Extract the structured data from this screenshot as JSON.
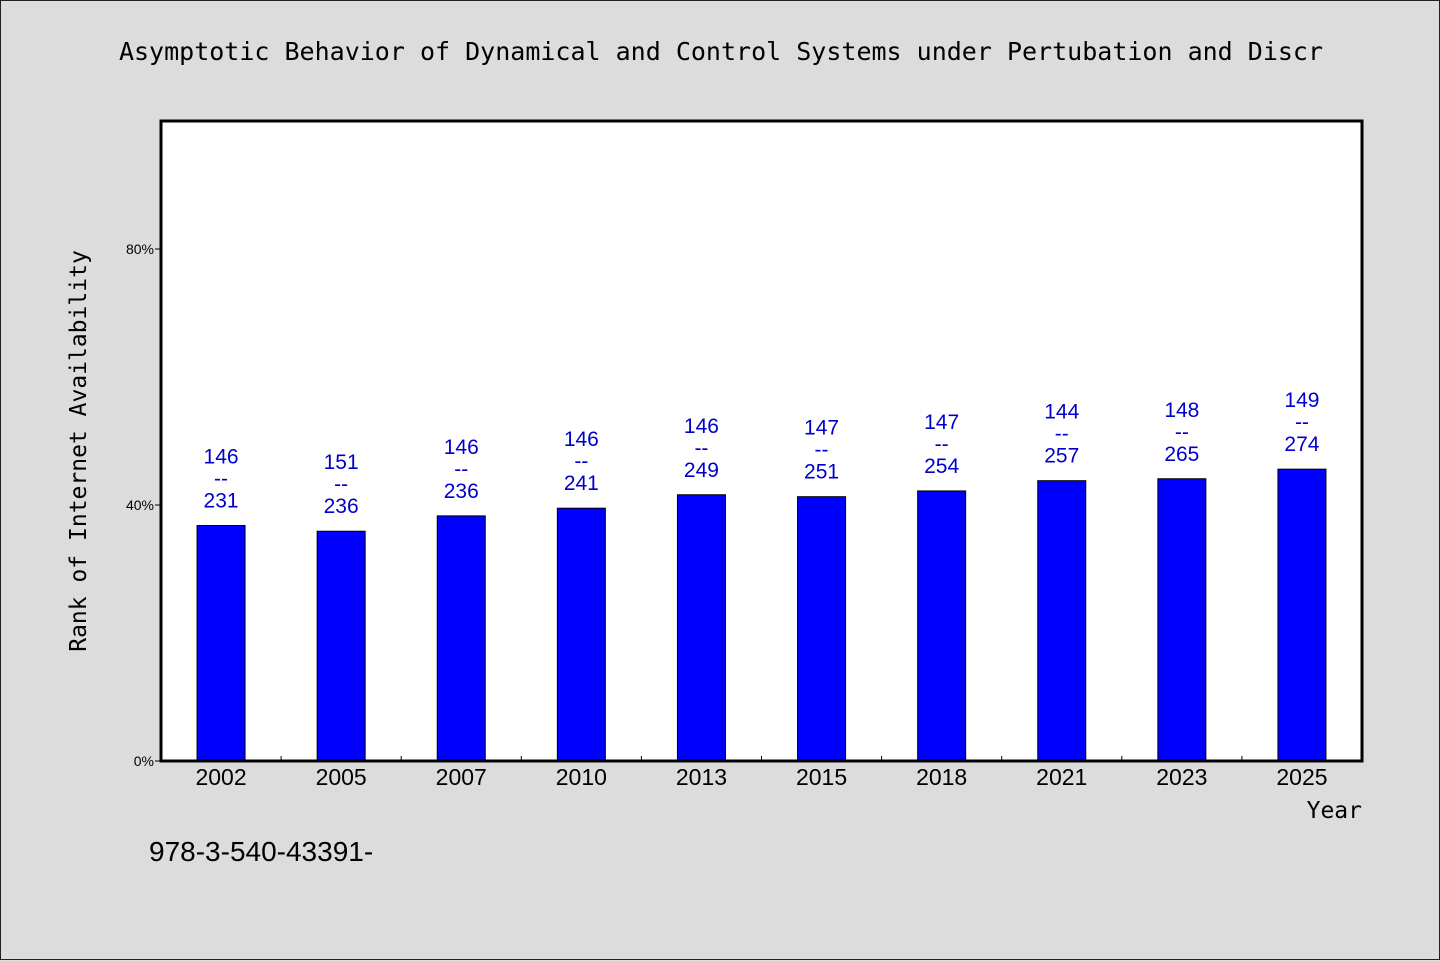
{
  "title": "Asymptotic Behavior of Dynamical and Control Systems under Pertubation and Discr",
  "footnote": "978-3-540-43391-",
  "colors": {
    "bar": "#0000ff",
    "label": "#0000cc",
    "background": "#dcdcdc",
    "plot": "#ffffff"
  },
  "chart_data": {
    "type": "bar",
    "title": "Asymptotic Behavior of Dynamical and Control Systems under Pertubation and Discr",
    "xlabel": "Year",
    "ylabel": "Rank of Internet Availability",
    "ylim": [
      0,
      100
    ],
    "yticks": [
      0,
      40,
      80
    ],
    "ytick_labels": [
      "0%",
      "40%",
      "80%"
    ],
    "grid": false,
    "categories": [
      "2002",
      "2005",
      "2007",
      "2010",
      "2013",
      "2015",
      "2018",
      "2021",
      "2023",
      "2025"
    ],
    "values": [
      36.8,
      35.9,
      38.3,
      39.5,
      41.6,
      41.3,
      42.2,
      43.8,
      44.1,
      45.6
    ],
    "data_labels": [
      [
        "146",
        "--",
        "231"
      ],
      [
        "151",
        "--",
        "236"
      ],
      [
        "146",
        "--",
        "236"
      ],
      [
        "146",
        "--",
        "241"
      ],
      [
        "146",
        "--",
        "249"
      ],
      [
        "147",
        "--",
        "251"
      ],
      [
        "147",
        "--",
        "254"
      ],
      [
        "144",
        "--",
        "257"
      ],
      [
        "148",
        "--",
        "265"
      ],
      [
        "149",
        "--",
        "274"
      ]
    ]
  }
}
